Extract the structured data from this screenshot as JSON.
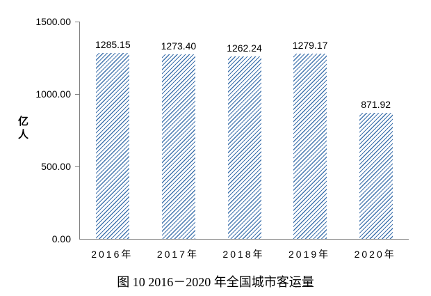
{
  "chart_data": {
    "type": "bar",
    "title": "图 10  2016－2020 年全国城市客运量",
    "categories": [
      "2016年",
      "2017年",
      "2018年",
      "2019年",
      "2020年"
    ],
    "values": [
      1285.15,
      1273.4,
      1262.24,
      1279.17,
      871.92
    ],
    "value_labels": [
      "1285.15",
      "1273.40",
      "1262.24",
      "1279.17",
      "871.92"
    ],
    "ylabel": "亿人",
    "xlabel": "",
    "ylim": [
      0,
      1500
    ],
    "ytick_labels": [
      "1500.00",
      "1000.00",
      "500.00",
      "0.00"
    ],
    "grid": false,
    "legend_position": "none",
    "bar_fill_style": "diagonal-hatch",
    "colors": {
      "bar_hatch": "#4174ae",
      "axis": "#7f7f7f",
      "text": "#000000",
      "background": "#ffffff"
    }
  }
}
